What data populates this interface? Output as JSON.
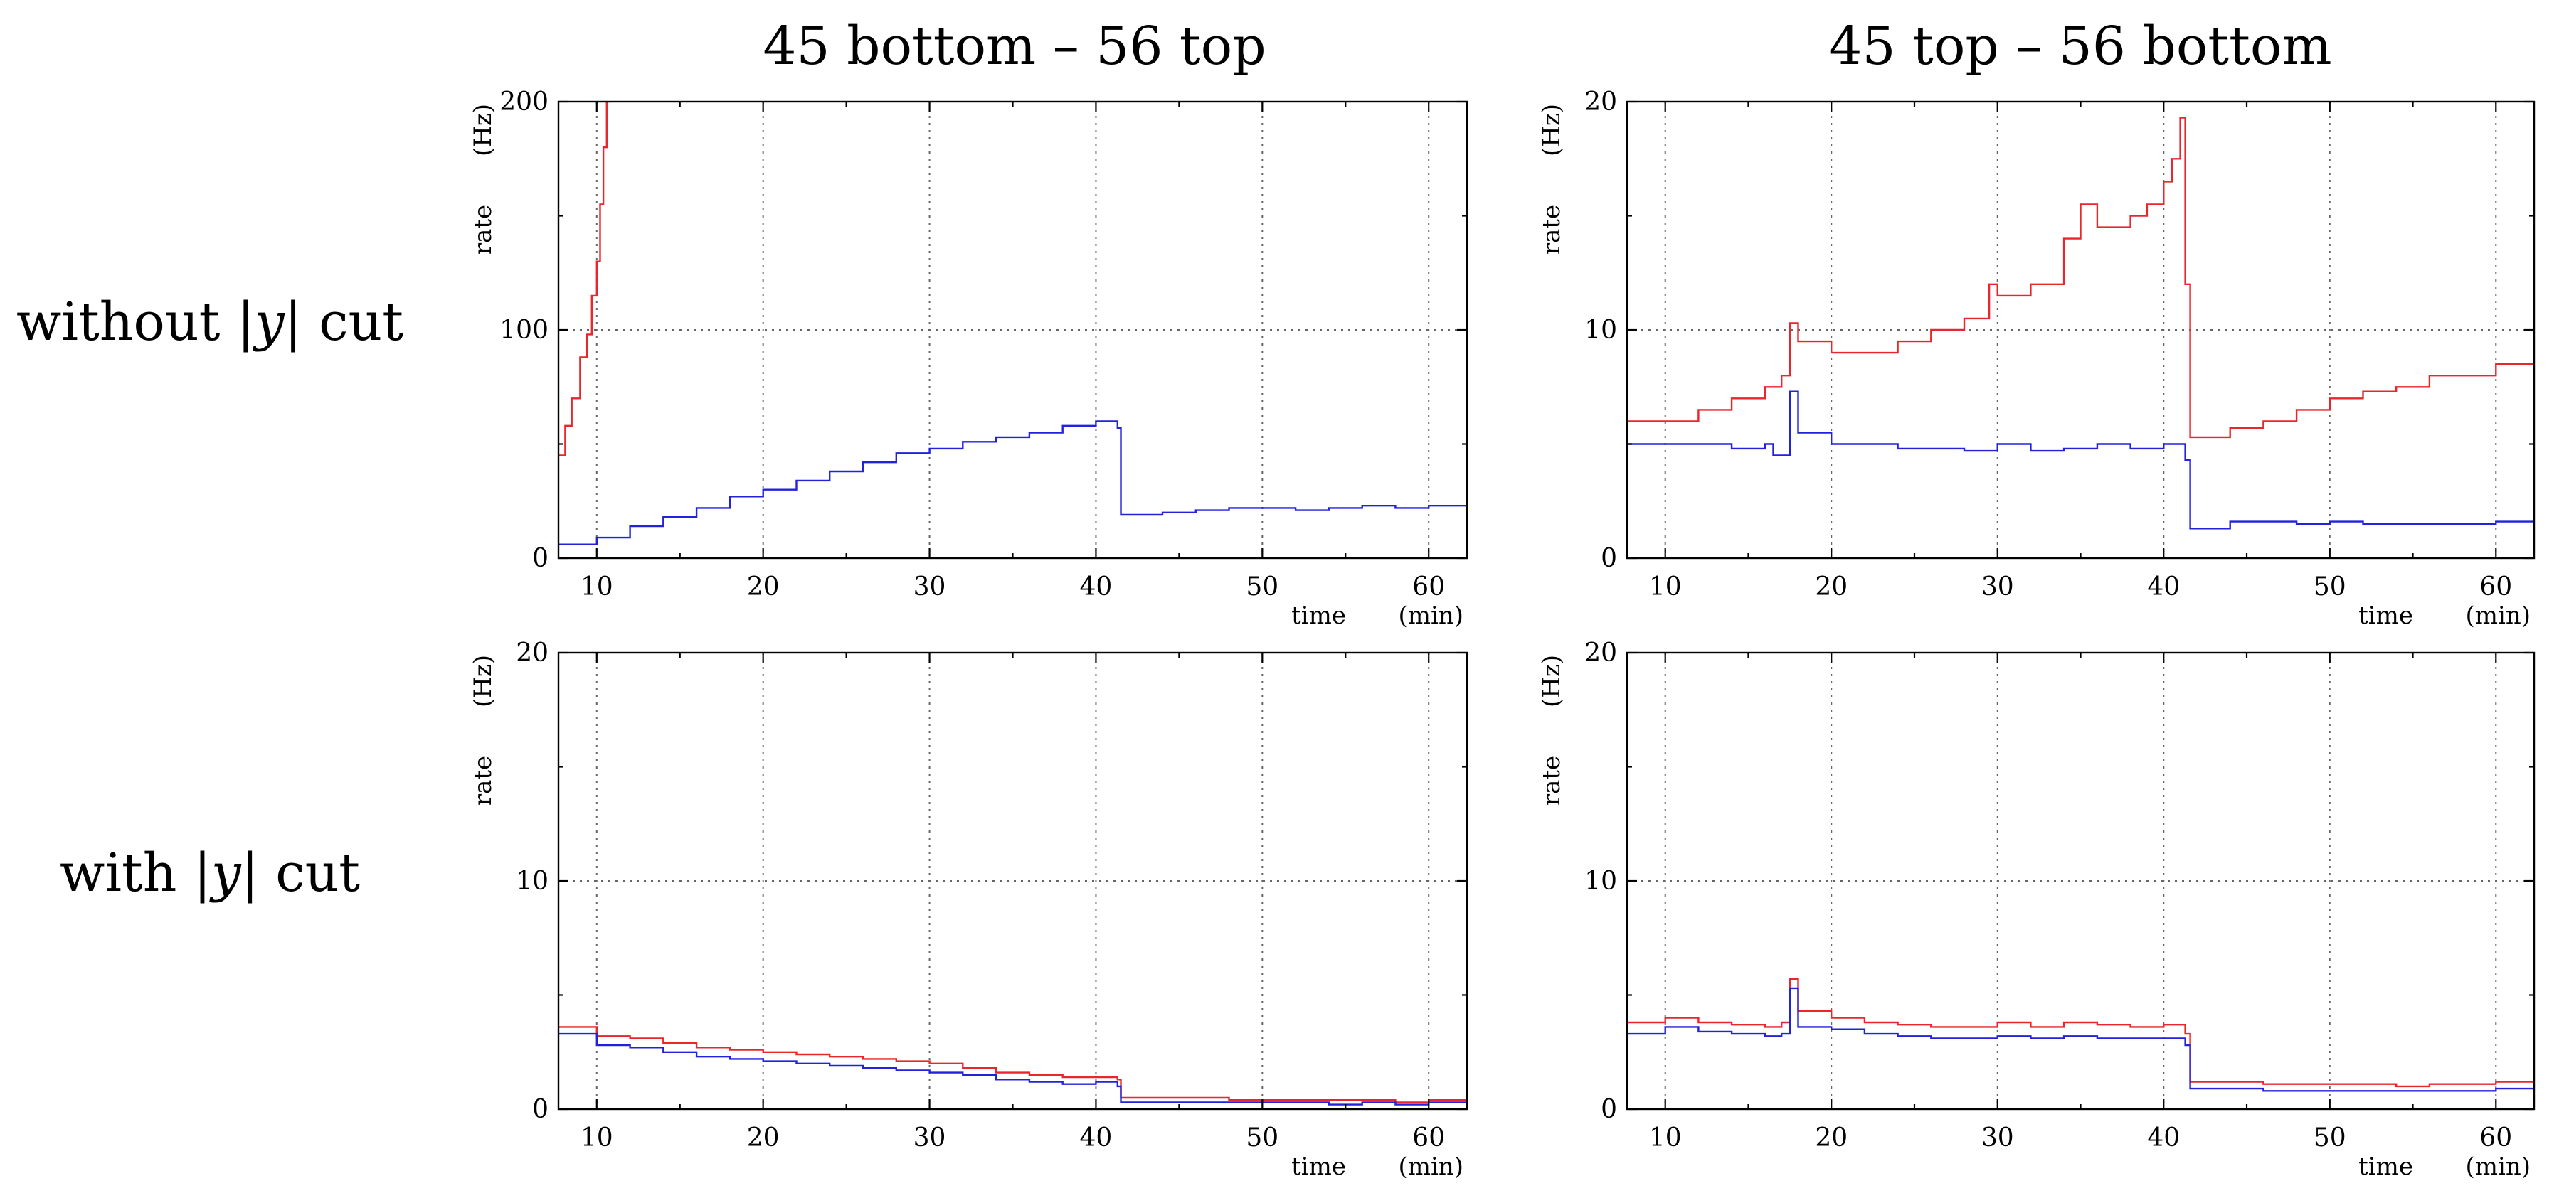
{
  "col_titles": [
    "45 bottom – 56 top",
    "45 top – 56 bottom"
  ],
  "row_labels": [
    {
      "pre": "without |",
      "var": "y",
      "post": "| cut"
    },
    {
      "pre": "with |",
      "var": "y",
      "post": "| cut"
    }
  ],
  "colors": {
    "red": "#e8262b",
    "blue": "#2222dd",
    "grid": "#666666",
    "axis": "#000000"
  },
  "chart_data": [
    {
      "type": "line",
      "panel": "top-left",
      "column_title": "45 bottom – 56 top",
      "row_label": "without |y| cut",
      "xlabel": "time",
      "xunit": "(min)",
      "ylabel": "rate",
      "yunit": "(Hz)",
      "xlim": [
        7.7,
        62.3
      ],
      "ylim": [
        0,
        200
      ],
      "xticks": [
        10,
        20,
        30,
        40,
        50,
        60
      ],
      "yticks": [
        0,
        100,
        200
      ],
      "series": [
        {
          "name": "red",
          "color": "#e8262b",
          "x": [
            7.7,
            8.1,
            8.5,
            9.0,
            9.4,
            9.7,
            10.0,
            10.2,
            10.4,
            10.6,
            10.8
          ],
          "y": [
            45,
            58,
            70,
            88,
            98,
            115,
            130,
            155,
            180,
            200,
            200
          ]
        },
        {
          "name": "blue",
          "color": "#2222dd",
          "x": [
            7.7,
            10,
            12,
            14,
            16,
            18,
            20,
            22,
            24,
            26,
            28,
            30,
            32,
            34,
            36,
            38,
            40,
            41.3,
            41.5,
            44,
            46,
            48,
            50,
            52,
            54,
            56,
            58,
            60,
            62.3
          ],
          "y": [
            6,
            9,
            14,
            18,
            22,
            27,
            30,
            34,
            38,
            42,
            46,
            48,
            51,
            53,
            55,
            58,
            60,
            57,
            19,
            20,
            21,
            22,
            22,
            21,
            22,
            23,
            22,
            23,
            22
          ]
        }
      ]
    },
    {
      "type": "line",
      "panel": "top-right",
      "column_title": "45 top – 56 bottom",
      "row_label": "without |y| cut",
      "xlabel": "time",
      "xunit": "(min)",
      "ylabel": "rate",
      "yunit": "(Hz)",
      "xlim": [
        7.7,
        62.3
      ],
      "ylim": [
        0,
        20
      ],
      "xticks": [
        10,
        20,
        30,
        40,
        50,
        60
      ],
      "yticks": [
        0,
        10,
        20
      ],
      "series": [
        {
          "name": "red",
          "color": "#e8262b",
          "x": [
            7.7,
            10,
            12,
            14,
            16,
            17,
            17.5,
            18,
            20,
            22,
            24,
            26,
            28,
            29.5,
            30,
            32,
            34,
            35,
            36,
            38,
            39,
            40,
            40.5,
            41.0,
            41.3,
            41.6,
            44,
            46,
            48,
            50,
            52,
            54,
            56,
            58,
            60,
            62.3
          ],
          "y": [
            6,
            6,
            6.5,
            7,
            7.5,
            8,
            10.3,
            9.5,
            9,
            9,
            9.5,
            10,
            10.5,
            12,
            11.5,
            12,
            14,
            15.5,
            14.5,
            15,
            15.5,
            16.5,
            17.5,
            19.3,
            12,
            5.3,
            5.7,
            6,
            6.5,
            7,
            7.3,
            7.5,
            8,
            8,
            8.5,
            8
          ]
        },
        {
          "name": "blue",
          "color": "#2222dd",
          "x": [
            7.7,
            10,
            12,
            14,
            16,
            16.5,
            17.5,
            18,
            20,
            22,
            24,
            26,
            28,
            30,
            32,
            34,
            36,
            38,
            40,
            41.3,
            41.6,
            44,
            46,
            48,
            50,
            52,
            54,
            56,
            58,
            60,
            62.3
          ],
          "y": [
            5,
            5,
            5,
            4.8,
            5,
            4.5,
            7.3,
            5.5,
            5,
            5,
            4.8,
            4.8,
            4.7,
            5,
            4.7,
            4.8,
            5,
            4.8,
            5,
            4.3,
            1.3,
            1.6,
            1.6,
            1.5,
            1.6,
            1.5,
            1.5,
            1.5,
            1.5,
            1.6,
            1.4
          ]
        }
      ]
    },
    {
      "type": "line",
      "panel": "bottom-left",
      "column_title": "45 bottom – 56 top",
      "row_label": "with |y| cut",
      "xlabel": "time",
      "xunit": "(min)",
      "ylabel": "rate",
      "yunit": "(Hz)",
      "xlim": [
        7.7,
        62.3
      ],
      "ylim": [
        0,
        20
      ],
      "xticks": [
        10,
        20,
        30,
        40,
        50,
        60
      ],
      "yticks": [
        0,
        10,
        20
      ],
      "series": [
        {
          "name": "red",
          "color": "#e8262b",
          "x": [
            7.7,
            10,
            12,
            14,
            16,
            18,
            20,
            22,
            24,
            26,
            28,
            30,
            32,
            34,
            36,
            38,
            40,
            41.3,
            41.5,
            44,
            46,
            48,
            50,
            52,
            54,
            56,
            58,
            60,
            62.3
          ],
          "y": [
            3.6,
            3.2,
            3.1,
            2.9,
            2.7,
            2.6,
            2.5,
            2.4,
            2.3,
            2.2,
            2.1,
            2.0,
            1.8,
            1.6,
            1.5,
            1.4,
            1.4,
            1.3,
            0.5,
            0.5,
            0.5,
            0.4,
            0.4,
            0.4,
            0.4,
            0.4,
            0.3,
            0.4,
            0.3
          ]
        },
        {
          "name": "blue",
          "color": "#2222dd",
          "x": [
            7.7,
            10,
            12,
            14,
            16,
            18,
            20,
            22,
            24,
            26,
            28,
            30,
            32,
            34,
            36,
            38,
            40,
            41.3,
            41.5,
            44,
            46,
            48,
            50,
            52,
            54,
            56,
            58,
            60,
            62.3
          ],
          "y": [
            3.3,
            2.8,
            2.7,
            2.5,
            2.3,
            2.2,
            2.1,
            2.0,
            1.9,
            1.8,
            1.7,
            1.6,
            1.5,
            1.3,
            1.2,
            1.1,
            1.2,
            1.0,
            0.3,
            0.3,
            0.3,
            0.3,
            0.3,
            0.3,
            0.2,
            0.3,
            0.2,
            0.3,
            0.2
          ]
        }
      ]
    },
    {
      "type": "line",
      "panel": "bottom-right",
      "column_title": "45 top – 56 bottom",
      "row_label": "with |y| cut",
      "xlabel": "time",
      "xunit": "(min)",
      "ylabel": "rate",
      "yunit": "(Hz)",
      "xlim": [
        7.7,
        62.3
      ],
      "ylim": [
        0,
        20
      ],
      "xticks": [
        10,
        20,
        30,
        40,
        50,
        60
      ],
      "yticks": [
        0,
        10,
        20
      ],
      "series": [
        {
          "name": "red",
          "color": "#e8262b",
          "x": [
            7.7,
            10,
            12,
            14,
            16,
            17,
            17.5,
            18,
            20,
            22,
            24,
            26,
            28,
            30,
            32,
            34,
            36,
            38,
            40,
            41.3,
            41.6,
            44,
            46,
            48,
            50,
            52,
            54,
            56,
            58,
            60,
            62.3
          ],
          "y": [
            3.8,
            4.0,
            3.8,
            3.7,
            3.6,
            3.8,
            5.7,
            4.3,
            4.0,
            3.8,
            3.7,
            3.6,
            3.6,
            3.8,
            3.6,
            3.8,
            3.7,
            3.6,
            3.7,
            3.3,
            1.2,
            1.2,
            1.1,
            1.1,
            1.1,
            1.1,
            1.0,
            1.1,
            1.1,
            1.2,
            1.0
          ]
        },
        {
          "name": "blue",
          "color": "#2222dd",
          "x": [
            7.7,
            10,
            12,
            14,
            16,
            17,
            17.5,
            18,
            20,
            22,
            24,
            26,
            28,
            30,
            32,
            34,
            36,
            38,
            40,
            41.3,
            41.6,
            44,
            46,
            48,
            50,
            52,
            54,
            56,
            58,
            60,
            62.3
          ],
          "y": [
            3.3,
            3.6,
            3.4,
            3.3,
            3.2,
            3.3,
            5.3,
            3.6,
            3.5,
            3.3,
            3.2,
            3.1,
            3.1,
            3.2,
            3.1,
            3.2,
            3.1,
            3.1,
            3.1,
            2.8,
            0.9,
            0.9,
            0.8,
            0.8,
            0.8,
            0.8,
            0.8,
            0.8,
            0.8,
            0.9,
            0.8
          ]
        }
      ]
    }
  ]
}
